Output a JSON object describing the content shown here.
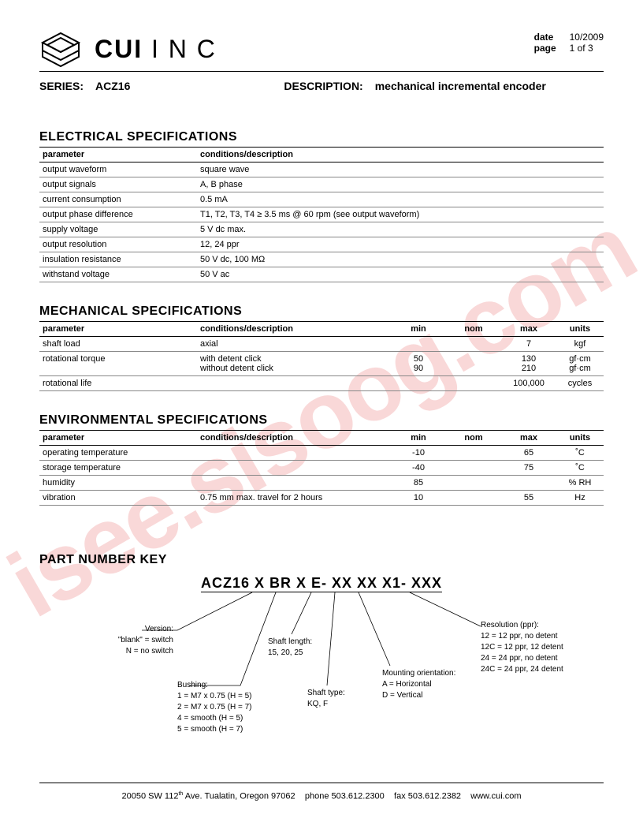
{
  "header": {
    "company_name_bold": "CUI",
    "company_name_light": "I N C",
    "date_label": "date",
    "date_value": "10/2009",
    "page_label": "page",
    "page_value": "1 of 3"
  },
  "title_row": {
    "series_label": "SERIES:",
    "series_value": "ACZ16",
    "desc_label": "DESCRIPTION:",
    "desc_value": "mechanical incremental encoder"
  },
  "sections": {
    "electrical": {
      "title": "ELECTRICAL SPECIFICATIONS",
      "headers": [
        "parameter",
        "conditions/description"
      ],
      "rows": [
        [
          "output waveform",
          "square wave"
        ],
        [
          "output signals",
          "A, B phase"
        ],
        [
          "current consumption",
          "0.5 mA"
        ],
        [
          "output phase difference",
          "T1, T2, T3, T4 ≥ 3.5 ms @ 60 rpm (see output waveform)"
        ],
        [
          "supply voltage",
          "5 V dc max."
        ],
        [
          "output resolution",
          "12, 24 ppr"
        ],
        [
          "insulation resistance",
          "50 V dc, 100 MΩ"
        ],
        [
          "withstand voltage",
          "50 V ac"
        ]
      ]
    },
    "mechanical": {
      "title": "MECHANICAL SPECIFICATIONS",
      "headers": [
        "parameter",
        "conditions/description",
        "min",
        "nom",
        "max",
        "units"
      ],
      "rows": [
        {
          "param": "shaft load",
          "cond": "axial",
          "min": "",
          "nom": "",
          "max": "7",
          "units": "kgf"
        },
        {
          "param": "rotational torque",
          "cond": "with detent click\nwithout detent click",
          "min": "50\n90",
          "nom": "",
          "max": "130\n210",
          "units": "gf·cm\ngf·cm"
        },
        {
          "param": "rotational life",
          "cond": "",
          "min": "",
          "nom": "",
          "max": "100,000",
          "units": "cycles"
        }
      ]
    },
    "environmental": {
      "title": "ENVIRONMENTAL SPECIFICATIONS",
      "headers": [
        "parameter",
        "conditions/description",
        "min",
        "nom",
        "max",
        "units"
      ],
      "rows": [
        {
          "param": "operating temperature",
          "cond": "",
          "min": "-10",
          "nom": "",
          "max": "65",
          "units": "˚C"
        },
        {
          "param": "storage temperature",
          "cond": "",
          "min": "-40",
          "nom": "",
          "max": "75",
          "units": "˚C"
        },
        {
          "param": "humidity",
          "cond": "",
          "min": "85",
          "nom": "",
          "max": "",
          "units": "% RH"
        },
        {
          "param": "vibration",
          "cond": "0.75 mm max. travel for 2 hours",
          "min": "10",
          "nom": "",
          "max": "55",
          "units": "Hz"
        }
      ]
    }
  },
  "part_key": {
    "title": "PART NUMBER KEY",
    "part_number": "ACZ16 X BR X E- XX XX X1- XXX",
    "labels": {
      "version": {
        "title": "Version:",
        "lines": [
          "\"blank\" = switch",
          "N = no switch"
        ]
      },
      "bushing": {
        "title": "Bushing:",
        "lines": [
          "1 = M7 x 0.75 (H = 5)",
          "2 = M7 x 0.75 (H = 7)",
          "4 = smooth (H = 5)",
          "5 = smooth (H = 7)"
        ]
      },
      "shaft_length": {
        "title": "Shaft length:",
        "lines": [
          "15, 20, 25"
        ]
      },
      "shaft_type": {
        "title": "Shaft type:",
        "lines": [
          "KQ, F"
        ]
      },
      "mounting": {
        "title": "Mounting orientation:",
        "lines": [
          "A = Horizontal",
          "D = Vertical"
        ]
      },
      "resolution": {
        "title": "Resolution (ppr):",
        "lines": [
          "12 = 12 ppr, no detent",
          "12C = 12 ppr, 12 detent",
          "24 = 24 ppr, no detent",
          "24C = 24 ppr, 24 detent"
        ]
      }
    }
  },
  "footer": {
    "address": "20050 SW 112",
    "th": "th",
    "address2": " Ave. Tualatin, Oregon 97062",
    "phone": "phone 503.612.2300",
    "fax": "fax 503.612.2382",
    "web": "www.cui.com"
  },
  "watermark": "isee.sisoog.com"
}
